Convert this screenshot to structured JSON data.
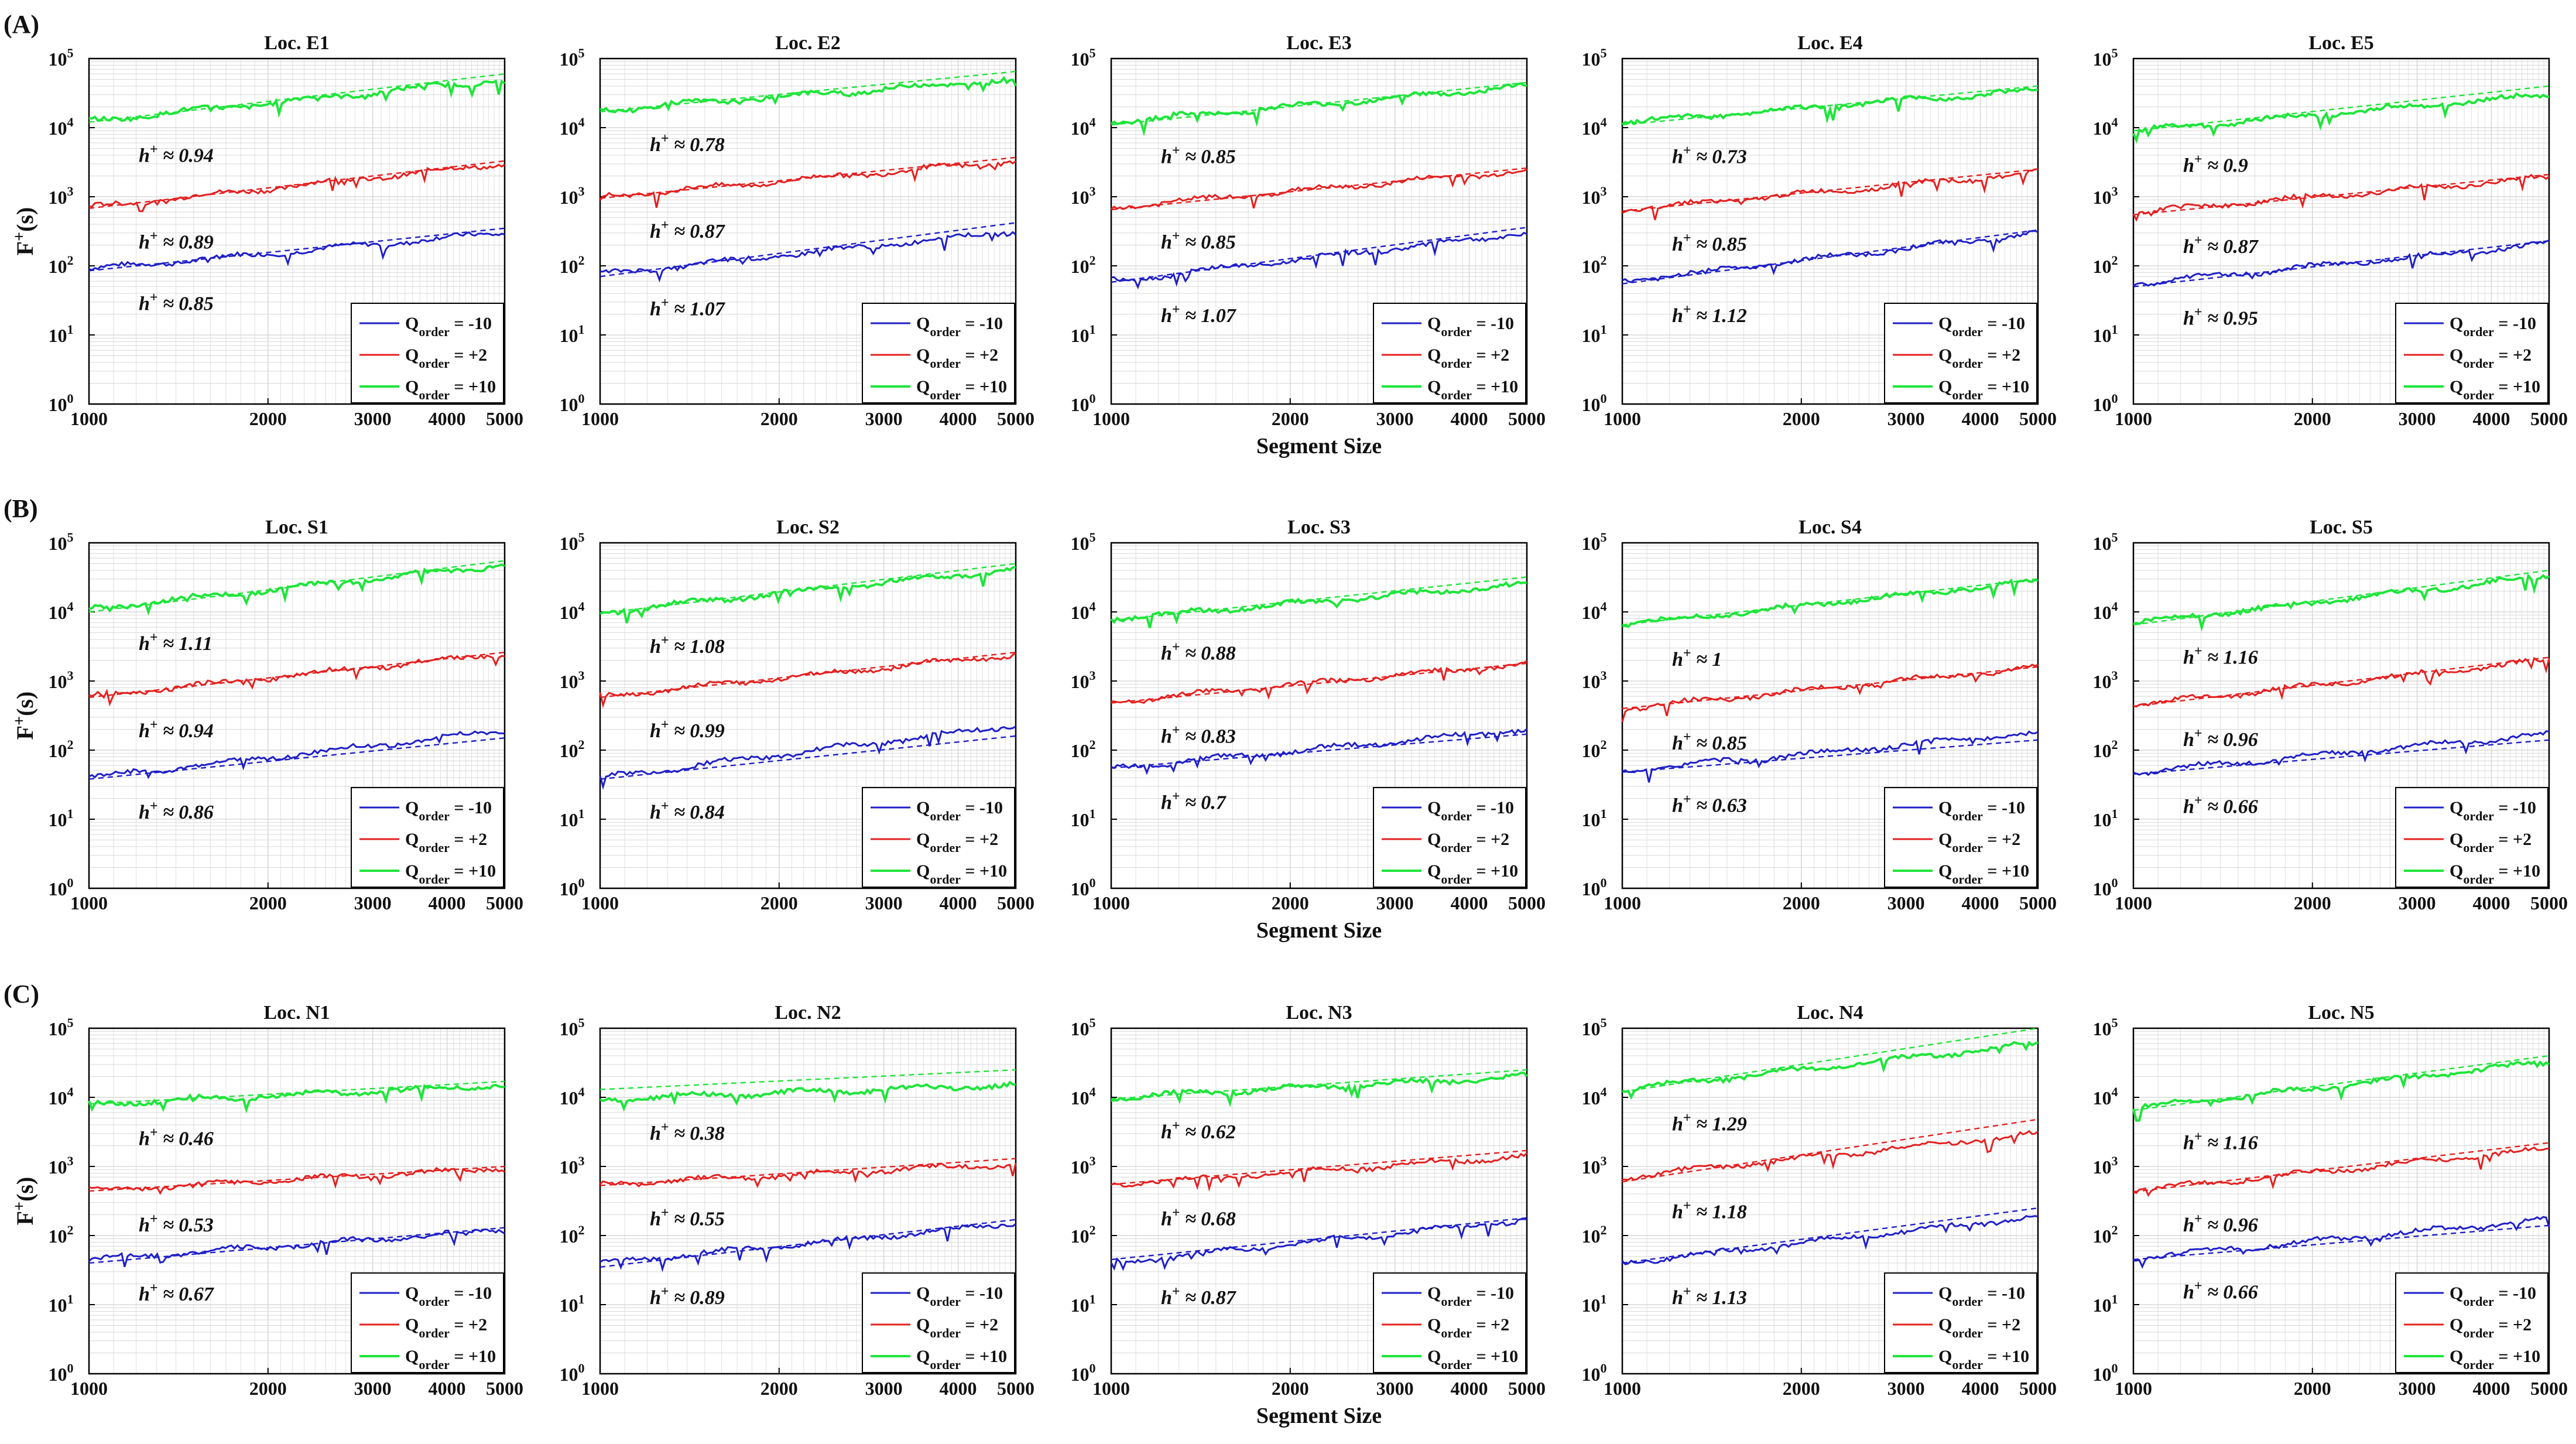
{
  "figure": {
    "xlabel": "Segment Size",
    "ylabel_base": "F",
    "ylabel_sup": "+",
    "ylabel_tail": "(s)",
    "x_ticks": [
      "1000",
      "2000",
      "3000",
      "4000",
      "5000"
    ],
    "y_tick_base": "10",
    "y_tick_exps": [
      "0",
      "1",
      "2",
      "3",
      "4",
      "5"
    ],
    "h_label_prefix": "h",
    "h_label_sup": "+",
    "h_label_op": "≈",
    "legend_base": "Q",
    "legend_sub": "order",
    "colors": {
      "neg10": "#1f1fc8",
      "pos2": "#e52020",
      "pos10": "#1ee53a",
      "axis": "#000000",
      "grid": "#d8d8d8"
    }
  },
  "chart_data": {
    "type": "line",
    "xscale": "log",
    "yscale": "log",
    "xlim": [
      1000,
      5000
    ],
    "ylim": [
      1,
      100000
    ],
    "series_names": [
      "Q_order = -10",
      "Q_order = +2",
      "Q_order = +10"
    ],
    "groups": [
      {
        "label": "(A)",
        "panels": [
          {
            "title": "Loc. E1",
            "start": [
              90,
              700,
              12500
            ],
            "end": [
              300,
              3000,
              50000
            ],
            "fitStart": [
              85,
              680,
              12000
            ],
            "fitEnd": [
              350,
              3300,
              60000
            ],
            "h": [
              "0.85",
              "0.89",
              "0.94"
            ]
          },
          {
            "title": "Loc. E2",
            "start": [
              75,
              1000,
              18000
            ],
            "end": [
              320,
              3300,
              50000
            ],
            "fitStart": [
              70,
              950,
              17000
            ],
            "fitEnd": [
              420,
              3700,
              65000
            ],
            "h": [
              "1.07",
              "0.87",
              "0.78"
            ]
          },
          {
            "title": "Loc. E3",
            "start": [
              60,
              700,
              12000
            ],
            "end": [
              300,
              2400,
              40000
            ],
            "fitStart": [
              58,
              650,
              11000
            ],
            "fitEnd": [
              360,
              2600,
              45000
            ],
            "h": [
              "1.07",
              "0.85",
              "0.85"
            ]
          },
          {
            "title": "Loc. E4",
            "start": [
              60,
              650,
              12000
            ],
            "end": [
              300,
              2200,
              35000
            ],
            "fitStart": [
              55,
              620,
              11000
            ],
            "fitEnd": [
              330,
              2500,
              40000
            ],
            "h": [
              "1.12",
              "0.85",
              "0.73"
            ]
          },
          {
            "title": "Loc. E5",
            "start": [
              55,
              600,
              9000
            ],
            "end": [
              210,
              1900,
              30000
            ],
            "fitStart": [
              50,
              550,
              9000
            ],
            "fitEnd": [
              230,
              2100,
              40000
            ],
            "h": [
              "0.95",
              "0.87",
              "0.9"
            ]
          }
        ]
      },
      {
        "label": "(B)",
        "panels": [
          {
            "title": "Loc. S1",
            "start": [
              40,
              600,
              11000
            ],
            "end": [
              190,
              2500,
              48000
            ],
            "fitStart": [
              38,
              580,
              10000
            ],
            "fitEnd": [
              150,
              2600,
              55000
            ],
            "h": [
              "0.86",
              "0.94",
              "1.11"
            ]
          },
          {
            "title": "Loc. S2",
            "start": [
              40,
              600,
              10000
            ],
            "end": [
              230,
              2400,
              42000
            ],
            "fitStart": [
              38,
              580,
              9500
            ],
            "fitEnd": [
              160,
              2600,
              50000
            ],
            "h": [
              "0.84",
              "0.99",
              "1.08"
            ]
          },
          {
            "title": "Loc. S3",
            "start": [
              55,
              500,
              8000
            ],
            "end": [
              200,
              1800,
              25000
            ],
            "fitStart": [
              55,
              480,
              7500
            ],
            "fitEnd": [
              170,
              1800,
              32000
            ],
            "h": [
              "0.7",
              "0.83",
              "0.88"
            ]
          },
          {
            "title": "Loc. S4",
            "start": [
              50,
              400,
              6500
            ],
            "end": [
              180,
              1600,
              28000
            ],
            "fitStart": [
              48,
              400,
              6500
            ],
            "fitEnd": [
              140,
              1600,
              30000
            ],
            "h": [
              "0.63",
              "0.85",
              "1"
            ]
          },
          {
            "title": "Loc. S5",
            "start": [
              48,
              450,
              7000
            ],
            "end": [
              170,
              2000,
              33000
            ],
            "fitStart": [
              45,
              430,
              6500
            ],
            "fitEnd": [
              140,
              2200,
              40000
            ],
            "h": [
              "0.66",
              "0.96",
              "1.16"
            ]
          }
        ]
      },
      {
        "label": "(C)",
        "panels": [
          {
            "title": "Loc. N1",
            "start": [
              45,
              450,
              8000
            ],
            "end": [
              120,
              950,
              15000
            ],
            "fitStart": [
              40,
              440,
              8000
            ],
            "fitEnd": [
              130,
              1000,
              17000
            ],
            "h": [
              "0.67",
              "0.53",
              "0.46"
            ]
          },
          {
            "title": "Loc. N2",
            "start": [
              40,
              550,
              9500
            ],
            "end": [
              150,
              1100,
              15000
            ],
            "fitStart": [
              35,
              530,
              13000
            ],
            "fitEnd": [
              170,
              1300,
              25000
            ],
            "h": [
              "0.89",
              "0.55",
              "0.38"
            ]
          },
          {
            "title": "Loc. N3",
            "start": [
              40,
              550,
              10000
            ],
            "end": [
              170,
              1400,
              20000
            ],
            "fitStart": [
              45,
              550,
              9500
            ],
            "fitEnd": [
              180,
              1700,
              25000
            ],
            "h": [
              "0.87",
              "0.68",
              "0.62"
            ]
          },
          {
            "title": "Loc. N4",
            "start": [
              40,
              700,
              13000
            ],
            "end": [
              190,
              3000,
              60000
            ],
            "fitStart": [
              40,
              600,
              12000
            ],
            "fitEnd": [
              250,
              4800,
              100000
            ],
            "h": [
              "1.13",
              "1.18",
              "1.29"
            ]
          },
          {
            "title": "Loc. N5",
            "start": [
              48,
              450,
              7000
            ],
            "end": [
              170,
              1800,
              32000
            ],
            "fitStart": [
              45,
              430,
              6500
            ],
            "fitEnd": [
              140,
              2200,
              40000
            ],
            "h": [
              "0.66",
              "0.96",
              "1.16"
            ]
          }
        ]
      }
    ],
    "legend": [
      "= -10",
      "= +2",
      "= +10"
    ]
  }
}
